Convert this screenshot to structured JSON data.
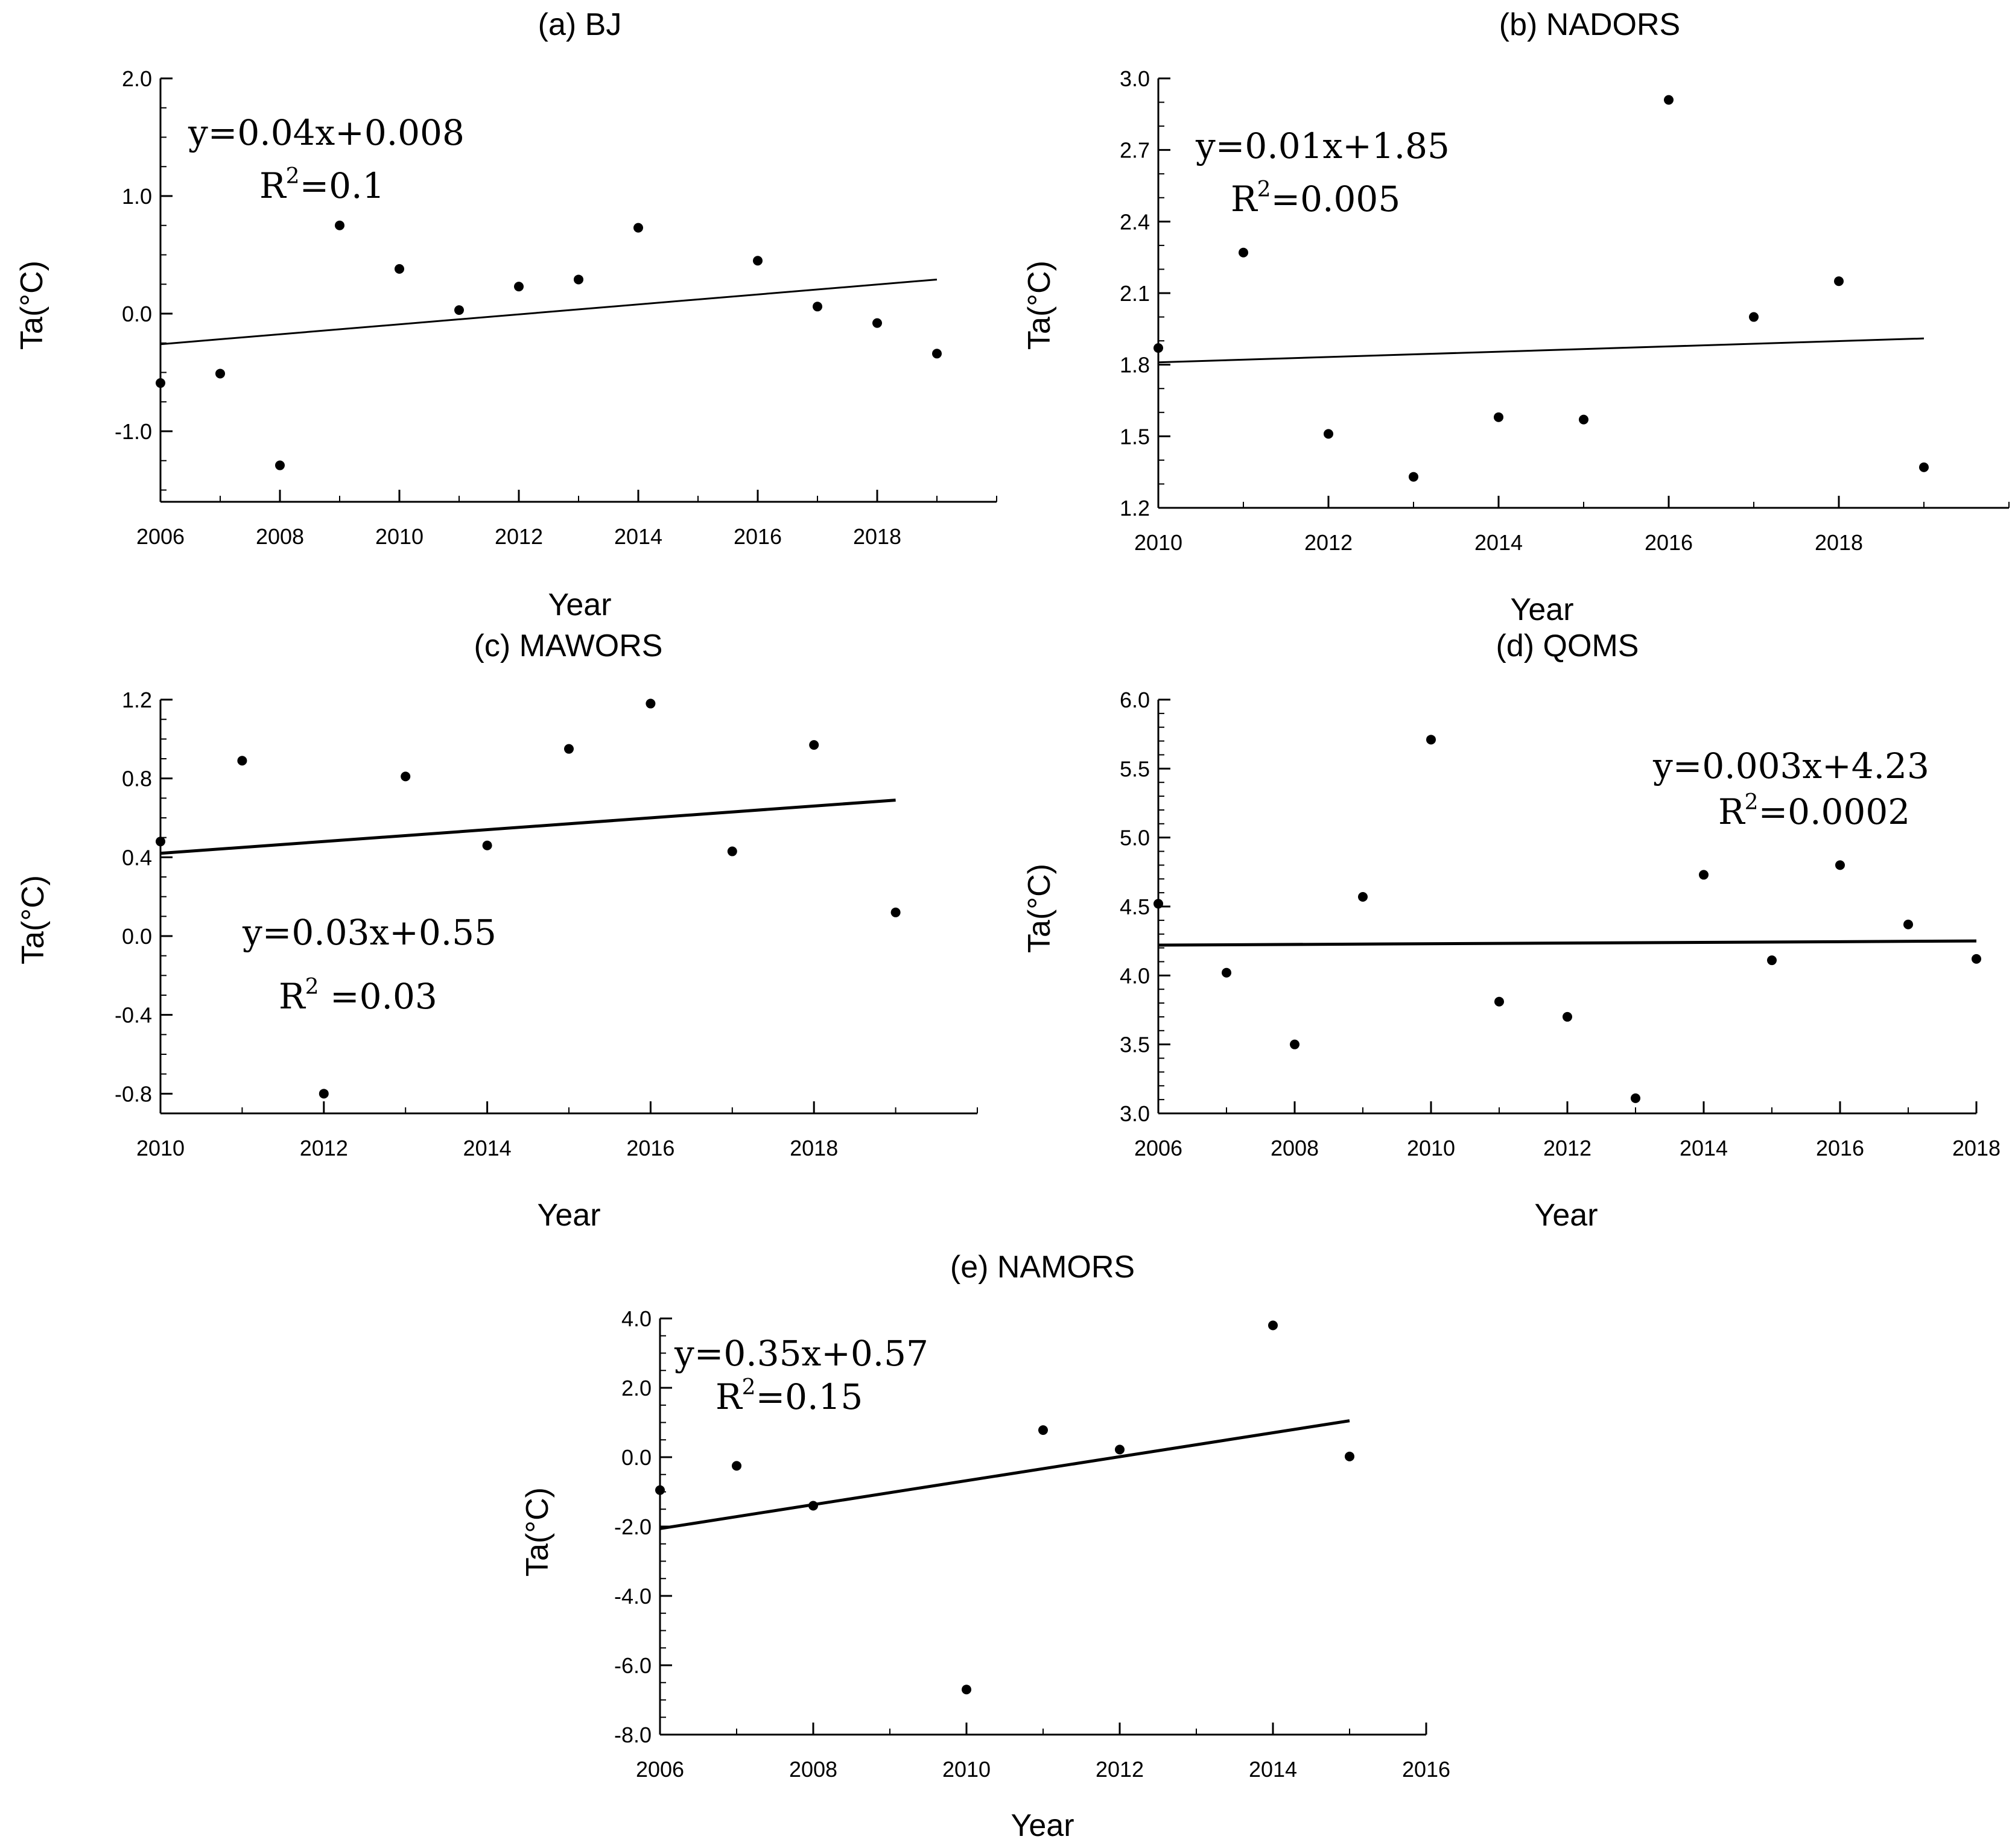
{
  "chart_data": [
    {
      "id": "a",
      "type": "scatter",
      "title": "(a) BJ",
      "xlabel": "Year",
      "ylabel": "Ta(°C)",
      "xlim": [
        2006,
        2020
      ],
      "ylim": [
        -1.6,
        2.0
      ],
      "xticks": [
        2006,
        2008,
        2010,
        2012,
        2014,
        2016,
        2018
      ],
      "yticks": [
        -1.0,
        0.0,
        1.0,
        2.0
      ],
      "xtick_labels": [
        "2006",
        "2008",
        "2010",
        "2012",
        "2014",
        "2016",
        "2018"
      ],
      "ytick_labels": [
        "-1.0",
        "0.0",
        "1.0",
        "2.0"
      ],
      "points": {
        "x": [
          2006,
          2007,
          2008,
          2009,
          2010,
          2011,
          2012,
          2013,
          2014,
          2016,
          2017,
          2018,
          2019
        ],
        "y": [
          -0.59,
          -0.51,
          -1.29,
          0.75,
          0.38,
          0.03,
          0.23,
          0.29,
          0.73,
          0.45,
          0.06,
          -0.08,
          -0.34
        ]
      },
      "trend": {
        "x": [
          2006,
          2019
        ],
        "y": [
          -0.26,
          0.29
        ]
      },
      "equation": "y=0.04x+0.008",
      "r2_label": "R",
      "r2_sup": "2",
      "r2_value": "=0.1"
    },
    {
      "id": "b",
      "type": "scatter",
      "title": "(b) NADORS",
      "xlabel": "Year",
      "ylabel": "Ta(°C)",
      "xlim": [
        2010,
        2020
      ],
      "ylim": [
        1.2,
        3.0
      ],
      "xticks": [
        2010,
        2012,
        2014,
        2016,
        2018
      ],
      "yticks": [
        1.2,
        1.5,
        1.8,
        2.1,
        2.4,
        2.7,
        3.0
      ],
      "xtick_labels": [
        "2010",
        "2012",
        "2014",
        "2016",
        "2018"
      ],
      "ytick_labels": [
        "1.2",
        "1.5",
        "1.8",
        "2.1",
        "2.4",
        "2.7",
        "3.0"
      ],
      "points": {
        "x": [
          2010,
          2011,
          2012,
          2013,
          2014,
          2015,
          2016,
          2017,
          2018,
          2019
        ],
        "y": [
          1.87,
          2.27,
          1.51,
          1.33,
          1.58,
          1.57,
          2.91,
          2.0,
          2.15,
          1.37
        ]
      },
      "trend": {
        "x": [
          2010,
          2019
        ],
        "y": [
          1.81,
          1.91
        ]
      },
      "equation": "y=0.01x+1.85",
      "r2_label": "R",
      "r2_sup": "2",
      "r2_value": "=0.005"
    },
    {
      "id": "c",
      "type": "scatter",
      "title": "(c) MAWORS",
      "xlabel": "Year",
      "ylabel": "Ta(°C)",
      "xlim": [
        2010,
        2020
      ],
      "ylim": [
        -0.9,
        1.2
      ],
      "xticks": [
        2010,
        2012,
        2014,
        2016,
        2018
      ],
      "yticks": [
        -0.8,
        -0.4,
        0.0,
        0.4,
        0.8,
        1.2
      ],
      "xtick_labels": [
        "2010",
        "2012",
        "2014",
        "2016",
        "2018"
      ],
      "ytick_labels": [
        "-0.8",
        "-0.4",
        "0.0",
        "0.4",
        "0.8",
        "1.2"
      ],
      "points": {
        "x": [
          2010,
          2011,
          2012,
          2013,
          2014,
          2015,
          2016,
          2017,
          2018,
          2019
        ],
        "y": [
          0.48,
          0.89,
          -0.8,
          0.81,
          0.46,
          0.95,
          1.18,
          0.43,
          0.97,
          0.12
        ]
      },
      "trend": {
        "x": [
          2010,
          2019
        ],
        "y": [
          0.42,
          0.69
        ]
      },
      "equation": "y=0.03x+0.55",
      "r2_label": "R",
      "r2_sup": "2",
      "r2_value": " =0.03"
    },
    {
      "id": "d",
      "type": "scatter",
      "title": "(d) QOMS",
      "xlabel": "Year",
      "ylabel": "Ta(°C)",
      "xlim": [
        2006,
        2018
      ],
      "ylim": [
        3.0,
        6.0
      ],
      "xticks": [
        2006,
        2008,
        2010,
        2012,
        2014,
        2016,
        2018
      ],
      "yticks": [
        3.0,
        3.5,
        4.0,
        4.5,
        5.0,
        5.5,
        6.0
      ],
      "xtick_labels": [
        "2006",
        "2008",
        "2010",
        "2012",
        "2014",
        "2016",
        "2018"
      ],
      "ytick_labels": [
        "3.0",
        "3.5",
        "4.0",
        "4.5",
        "5.0",
        "5.5",
        "6.0"
      ],
      "points": {
        "x": [
          2006,
          2007,
          2008,
          2009,
          2010,
          2011,
          2012,
          2013,
          2014,
          2015,
          2016,
          2017,
          2018
        ],
        "y": [
          4.52,
          4.02,
          3.5,
          4.57,
          5.71,
          3.81,
          3.7,
          3.11,
          4.73,
          4.11,
          4.8,
          4.37,
          4.12
        ]
      },
      "trend": {
        "x": [
          2006,
          2018
        ],
        "y": [
          4.22,
          4.25
        ]
      },
      "equation": "y=0.003x+4.23",
      "r2_label": "R",
      "r2_sup": "2",
      "r2_value": "=0.0002"
    },
    {
      "id": "e",
      "type": "scatter",
      "title": "(e) NAMORS",
      "xlabel": "Year",
      "ylabel": "Ta(°C)",
      "xlim": [
        2006,
        2016
      ],
      "ylim": [
        -8.0,
        4.0
      ],
      "xticks": [
        2006,
        2008,
        2010,
        2012,
        2014,
        2016
      ],
      "yticks": [
        -8.0,
        -6.0,
        -4.0,
        -2.0,
        0.0,
        2.0,
        4.0
      ],
      "xtick_labels": [
        "2006",
        "2008",
        "2010",
        "2012",
        "2014",
        "2016"
      ],
      "ytick_labels": [
        "-8.0",
        "-6.0",
        "-4.0",
        "-2.0",
        "0.0",
        "2.0",
        "4.0"
      ],
      "points": {
        "x": [
          2006,
          2007,
          2008,
          2010,
          2011,
          2012,
          2014,
          2015
        ],
        "y": [
          -0.95,
          -0.25,
          -1.4,
          -6.7,
          0.78,
          0.22,
          3.8,
          0.02
        ]
      },
      "trend": {
        "x": [
          2006,
          2015
        ],
        "y": [
          -2.06,
          1.05
        ]
      },
      "equation": "y=0.35x+0.57",
      "r2_label": "R",
      "r2_sup": "2",
      "r2_value": "=0.15"
    }
  ]
}
